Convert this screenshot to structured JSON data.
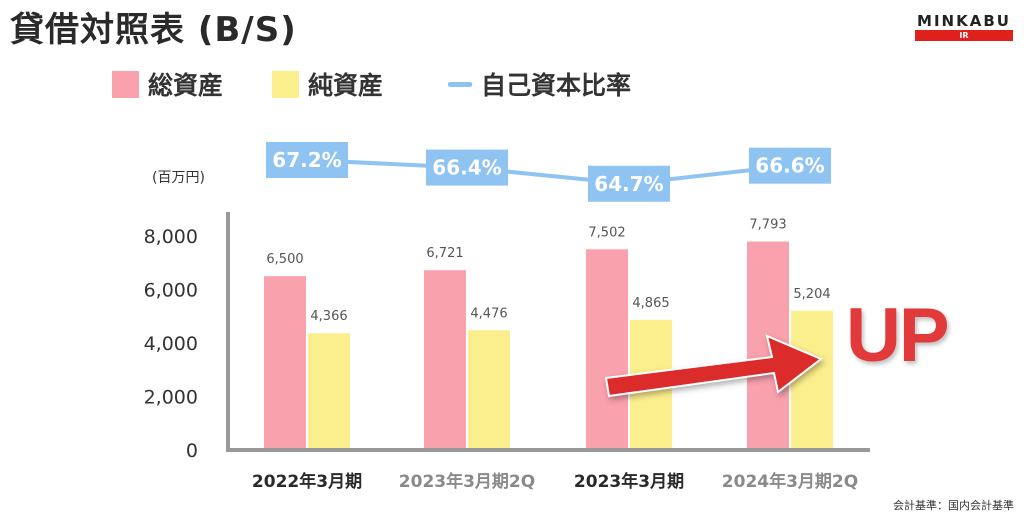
{
  "title": "貸借対照表 (B/S)",
  "logo": {
    "text": "MINKABU",
    "sub": "IR"
  },
  "legend": [
    {
      "label": "総資産",
      "color": "#f9a1ad",
      "kind": "box"
    },
    {
      "label": "純資産",
      "color": "#fbee8c",
      "kind": "box"
    },
    {
      "label": "自己資本比率",
      "color": "#8fc3f2",
      "kind": "line"
    }
  ],
  "unit_label": "(百万円)",
  "footnote": "会計基準：国内会計基準",
  "annotation": {
    "text": "UP",
    "color": "#e23a3a"
  },
  "chart_data": {
    "type": "bar",
    "categories": [
      "2022年3月期",
      "2023年3月期2Q",
      "2023年3月期",
      "2024年3月期2Q"
    ],
    "category_label_colors": [
      "#2a2a2a",
      "#8a8a8a",
      "#2a2a2a",
      "#8a8a8a"
    ],
    "series": [
      {
        "name": "総資産",
        "values": [
          6500,
          6721,
          7502,
          7793
        ],
        "labels": [
          "6,500",
          "6,721",
          "7,502",
          "7,793"
        ],
        "color": "#f9a1ad"
      },
      {
        "name": "純資産",
        "values": [
          4366,
          4476,
          4865,
          5204
        ],
        "labels": [
          "4,366",
          "4,476",
          "4,865",
          "5,204"
        ],
        "color": "#fbee8c"
      }
    ],
    "line_series": {
      "name": "自己資本比率",
      "values": [
        67.2,
        66.4,
        64.7,
        66.6
      ],
      "labels": [
        "67.2%",
        "66.4%",
        "64.7%",
        "66.6%"
      ],
      "color": "#8fc3f2"
    },
    "yticks": [
      0,
      2000,
      4000,
      6000,
      8000
    ],
    "ytick_labels": [
      "0",
      "2,000",
      "4,000",
      "6,000",
      "8,000"
    ],
    "ylim": [
      0,
      8000
    ]
  }
}
